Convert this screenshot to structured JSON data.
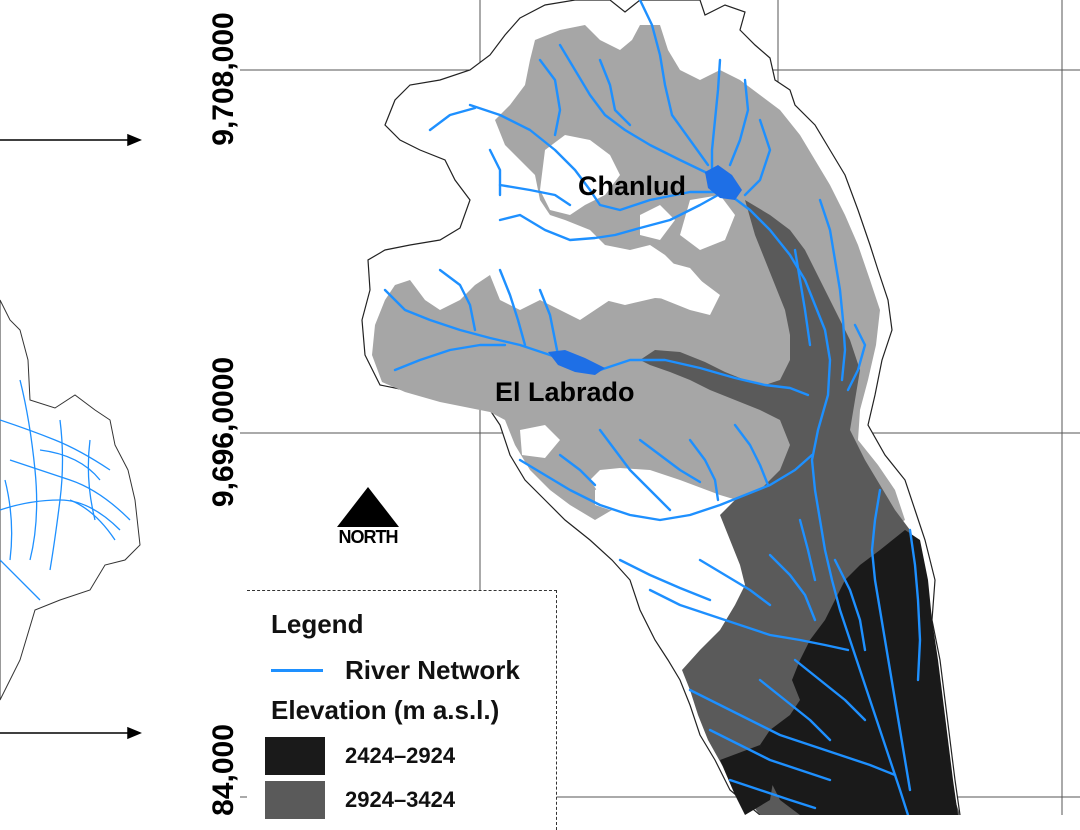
{
  "coordinates": {
    "y_labels": [
      "9,708,000",
      "9,696,0000",
      "84,000"
    ]
  },
  "places": {
    "chanlud": "Chanlud",
    "el_labrado": "El Labrado"
  },
  "north_arrow": {
    "label": "NORTH"
  },
  "legend": {
    "title": "Legend",
    "river_label": "River Network",
    "elevation_title": "Elevation (m a.s.l.)",
    "classes": [
      {
        "label": "2424–2924",
        "color": "#1a1a1a"
      },
      {
        "label": "2924–3424",
        "color": "#5a5a5a"
      }
    ]
  },
  "colors": {
    "river": "#1e90ff",
    "elev_2424_2924": "#1a1a1a",
    "elev_2924_3424": "#5a5a5a",
    "elev_3424_3924": "#a6a6a6",
    "elev_high": "#ffffff"
  }
}
